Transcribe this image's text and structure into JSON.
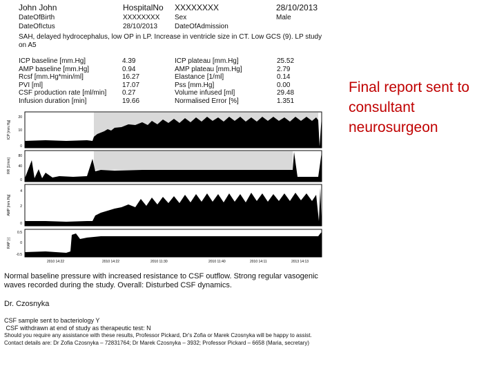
{
  "header": {
    "patient_name": "John John",
    "hospital_no_label": "HospitalNo",
    "hospital_no_value": "XXXXXXXX",
    "date_top": "28/10/2013",
    "dob_label": "DateOfBirth",
    "dob_value": "XXXXXXXX",
    "sex_label": "Sex",
    "sex_value": "Male",
    "ictus_label": "DateOfIctus",
    "ictus_value": "28/10/2013",
    "admission_label": "DateOfAdmission"
  },
  "diagnosis": "SAH, delayed hydrocephalus, low OP in LP. Increase in ventricle size in CT. Low GCS (9). LP study on A5",
  "params_left": {
    "labels": [
      "ICP baseline [mm.Hg]",
      "AMP baseline [mm.Hg]",
      "Rcsf [mm.Hg*min/ml]",
      "PVI [ml]",
      "CSF production rate [ml/min]",
      "Infusion duration [min]"
    ],
    "values": [
      "4.39",
      "0.94",
      "16.27",
      "17.07",
      "0.27",
      "19.66"
    ]
  },
  "params_right": {
    "labels": [
      "ICP plateau [mm.Hg]",
      "AMP plateau [mm.Hg]",
      "Elastance [1/ml]",
      "Pss [mm.Hg]",
      "Volume infused [ml]",
      "Normalised Error [%]"
    ],
    "values": [
      "25.52",
      "2.79",
      "0.14",
      "0.00",
      "29.48",
      "1.351"
    ]
  },
  "chart": {
    "panel_labels": [
      "ICP [mm.Hg]",
      "RR [1/min]",
      "AMP [mm.Hg]",
      "RAP [-]"
    ],
    "panel1_ticks": [
      "20",
      "10",
      "0"
    ],
    "panel2_ticks": [
      "80",
      "40",
      "0"
    ],
    "panel3_ticks": [
      "4",
      "2",
      "0"
    ],
    "panel4_ticks": [
      "0.5",
      "0",
      "-0.5"
    ],
    "x_ticks": [
      "2010 14:22",
      "2010 14:22",
      "2010 11:30",
      "2010 11:40",
      "2010 14:11",
      "2013 14:13"
    ]
  },
  "summary": "Normal baseline pressure with increased resistance to CSF outflow. Strong regular vasogenic waves recorded during the study.  Overall: Disturbed CSF dynamics.",
  "signature": "Dr. Czosnyka",
  "footer": {
    "line1": "CSF sample sent to bacteriology Y",
    "line2": " CSF withdrawn at end of study as therapeutic test: N",
    "line3": "Should you require any assistance with these results, Professor Pickard, Dr's Zofia or Marek Czosnyka will be happy to assist.  Contact details are: Dr Zofia Czosnyka – 72831764; Dr Marek Czosnyka – 3932; Professor Pickard – 6658 (Maria, secretary)"
  },
  "side_note": "Final report sent to consultant neurosurgeon",
  "colors": {
    "accent": "#c00000",
    "shade": "#d9d9d9",
    "trace": "#000000"
  }
}
